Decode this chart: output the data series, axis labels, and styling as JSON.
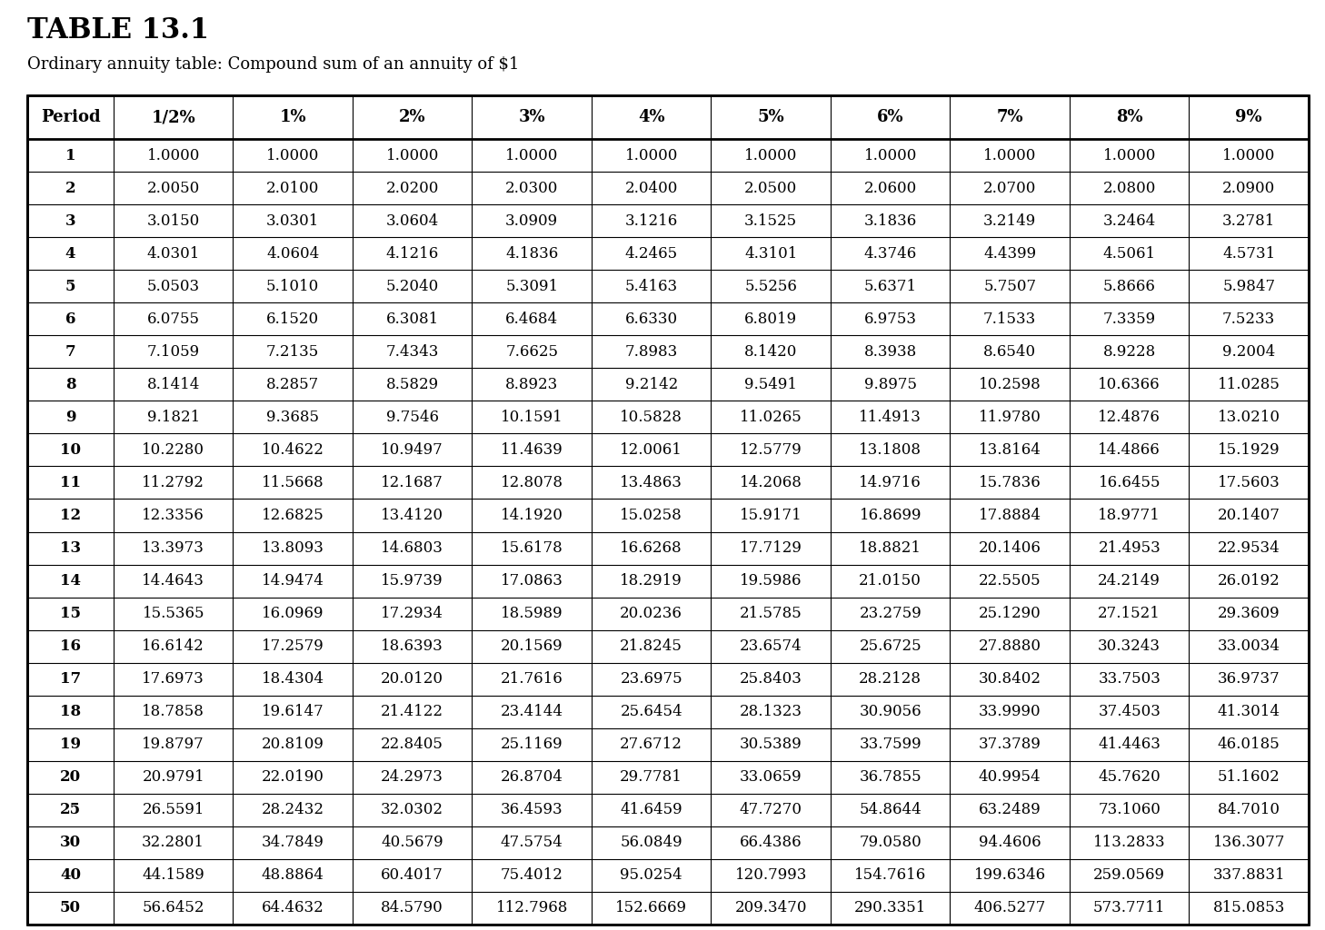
{
  "title": "TABLE 13.1",
  "subtitle": "Ordinary annuity table: Compound sum of an annuity of $1",
  "columns": [
    "Period",
    "1/2%",
    "1%",
    "2%",
    "3%",
    "4%",
    "5%",
    "6%",
    "7%",
    "8%",
    "9%"
  ],
  "rows": [
    [
      "1",
      "1.0000",
      "1.0000",
      "1.0000",
      "1.0000",
      "1.0000",
      "1.0000",
      "1.0000",
      "1.0000",
      "1.0000",
      "1.0000"
    ],
    [
      "2",
      "2.0050",
      "2.0100",
      "2.0200",
      "2.0300",
      "2.0400",
      "2.0500",
      "2.0600",
      "2.0700",
      "2.0800",
      "2.0900"
    ],
    [
      "3",
      "3.0150",
      "3.0301",
      "3.0604",
      "3.0909",
      "3.1216",
      "3.1525",
      "3.1836",
      "3.2149",
      "3.2464",
      "3.2781"
    ],
    [
      "4",
      "4.0301",
      "4.0604",
      "4.1216",
      "4.1836",
      "4.2465",
      "4.3101",
      "4.3746",
      "4.4399",
      "4.5061",
      "4.5731"
    ],
    [
      "5",
      "5.0503",
      "5.1010",
      "5.2040",
      "5.3091",
      "5.4163",
      "5.5256",
      "5.6371",
      "5.7507",
      "5.8666",
      "5.9847"
    ],
    [
      "6",
      "6.0755",
      "6.1520",
      "6.3081",
      "6.4684",
      "6.6330",
      "6.8019",
      "6.9753",
      "7.1533",
      "7.3359",
      "7.5233"
    ],
    [
      "7",
      "7.1059",
      "7.2135",
      "7.4343",
      "7.6625",
      "7.8983",
      "8.1420",
      "8.3938",
      "8.6540",
      "8.9228",
      "9.2004"
    ],
    [
      "8",
      "8.1414",
      "8.2857",
      "8.5829",
      "8.8923",
      "9.2142",
      "9.5491",
      "9.8975",
      "10.2598",
      "10.6366",
      "11.0285"
    ],
    [
      "9",
      "9.1821",
      "9.3685",
      "9.7546",
      "10.1591",
      "10.5828",
      "11.0265",
      "11.4913",
      "11.9780",
      "12.4876",
      "13.0210"
    ],
    [
      "10",
      "10.2280",
      "10.4622",
      "10.9497",
      "11.4639",
      "12.0061",
      "12.5779",
      "13.1808",
      "13.8164",
      "14.4866",
      "15.1929"
    ],
    [
      "11",
      "11.2792",
      "11.5668",
      "12.1687",
      "12.8078",
      "13.4863",
      "14.2068",
      "14.9716",
      "15.7836",
      "16.6455",
      "17.5603"
    ],
    [
      "12",
      "12.3356",
      "12.6825",
      "13.4120",
      "14.1920",
      "15.0258",
      "15.9171",
      "16.8699",
      "17.8884",
      "18.9771",
      "20.1407"
    ],
    [
      "13",
      "13.3973",
      "13.8093",
      "14.6803",
      "15.6178",
      "16.6268",
      "17.7129",
      "18.8821",
      "20.1406",
      "21.4953",
      "22.9534"
    ],
    [
      "14",
      "14.4643",
      "14.9474",
      "15.9739",
      "17.0863",
      "18.2919",
      "19.5986",
      "21.0150",
      "22.5505",
      "24.2149",
      "26.0192"
    ],
    [
      "15",
      "15.5365",
      "16.0969",
      "17.2934",
      "18.5989",
      "20.0236",
      "21.5785",
      "23.2759",
      "25.1290",
      "27.1521",
      "29.3609"
    ],
    [
      "16",
      "16.6142",
      "17.2579",
      "18.6393",
      "20.1569",
      "21.8245",
      "23.6574",
      "25.6725",
      "27.8880",
      "30.3243",
      "33.0034"
    ],
    [
      "17",
      "17.6973",
      "18.4304",
      "20.0120",
      "21.7616",
      "23.6975",
      "25.8403",
      "28.2128",
      "30.8402",
      "33.7503",
      "36.9737"
    ],
    [
      "18",
      "18.7858",
      "19.6147",
      "21.4122",
      "23.4144",
      "25.6454",
      "28.1323",
      "30.9056",
      "33.9990",
      "37.4503",
      "41.3014"
    ],
    [
      "19",
      "19.8797",
      "20.8109",
      "22.8405",
      "25.1169",
      "27.6712",
      "30.5389",
      "33.7599",
      "37.3789",
      "41.4463",
      "46.0185"
    ],
    [
      "20",
      "20.9791",
      "22.0190",
      "24.2973",
      "26.8704",
      "29.7781",
      "33.0659",
      "36.7855",
      "40.9954",
      "45.7620",
      "51.1602"
    ],
    [
      "25",
      "26.5591",
      "28.2432",
      "32.0302",
      "36.4593",
      "41.6459",
      "47.7270",
      "54.8644",
      "63.2489",
      "73.1060",
      "84.7010"
    ],
    [
      "30",
      "32.2801",
      "34.7849",
      "40.5679",
      "47.5754",
      "56.0849",
      "66.4386",
      "79.0580",
      "94.4606",
      "113.2833",
      "136.3077"
    ],
    [
      "40",
      "44.1589",
      "48.8864",
      "60.4017",
      "75.4012",
      "95.0254",
      "120.7993",
      "154.7616",
      "199.6346",
      "259.0569",
      "337.8831"
    ],
    [
      "50",
      "56.6452",
      "64.4632",
      "84.5790",
      "112.7968",
      "152.6669",
      "209.3470",
      "290.3351",
      "406.5277",
      "573.7711",
      "815.0853"
    ]
  ],
  "title_fontsize": 22,
  "subtitle_fontsize": 13,
  "header_fontsize": 13,
  "cell_fontsize": 12,
  "background_color": "#ffffff",
  "border_color": "#000000",
  "text_color": "#000000"
}
